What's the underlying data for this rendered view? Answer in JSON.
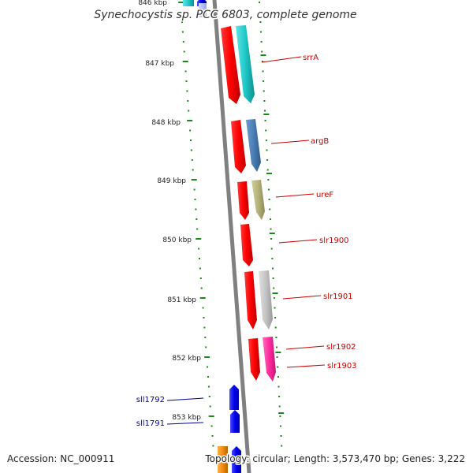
{
  "title": "Synechocystis sp. PCC 6803, complete genome",
  "footer": {
    "accession": "Accession: NC_000911",
    "summary": "Topology: circular; Length: 3,573,470 bp; Genes: 3,222"
  },
  "ticks": [
    "846 kbp",
    "847 kbp",
    "848 kbp",
    "849 kbp",
    "850 kbp",
    "851 kbp",
    "852 kbp",
    "853 kbp"
  ],
  "genes_forward": [
    {
      "label": "srrA",
      "color": "#19c4c4"
    },
    {
      "label": "argB",
      "color": "#4a7fb5"
    },
    {
      "label": "ureF",
      "color": "#b5b27a"
    },
    {
      "label": "slr1900",
      "color": "#cc0000"
    },
    {
      "label": "slr1901",
      "color": "#bdbdbd"
    },
    {
      "label": "slr1902",
      "color": "#ff2a9d"
    },
    {
      "label": "slr1903",
      "color": "#cc0000"
    }
  ],
  "genes_reverse": [
    {
      "label": "sll1792",
      "color": "#0000ee"
    },
    {
      "label": "sll1791",
      "color": "#0000ee"
    }
  ],
  "colors": {
    "backbone": "#808080",
    "tick": "#1a8a1a",
    "cds": "#ff0000",
    "forward_label": "#cc0000",
    "reverse_label": "#000099"
  }
}
